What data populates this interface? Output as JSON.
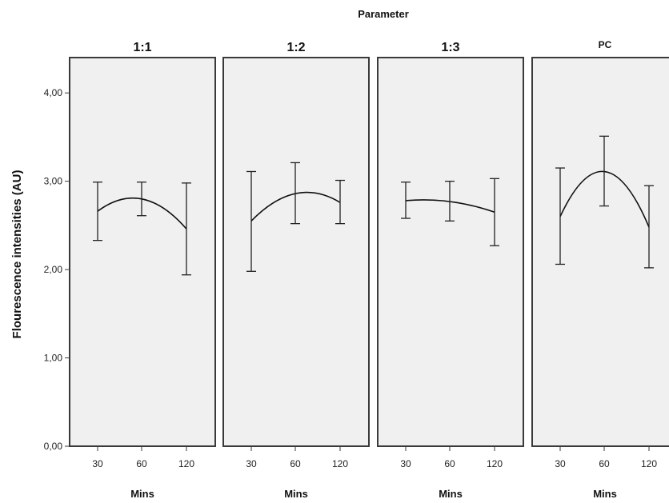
{
  "chart_data": {
    "type": "line",
    "facet_title": "Parameter",
    "ylabel": "Flourescence intensities (AU)",
    "xlabel": "Mins",
    "ylim": [
      0,
      4.4
    ],
    "yticks": [
      "0,00",
      "1,00",
      "2,00",
      "3,00",
      "4,00"
    ],
    "ytick_values": [
      0,
      1,
      2,
      3,
      4
    ],
    "x": [
      "30",
      "60",
      "120"
    ],
    "panels": [
      {
        "title": "1:1",
        "values": [
          2.66,
          2.8,
          2.46
        ],
        "lower": [
          2.33,
          2.61,
          1.94
        ],
        "upper": [
          2.99,
          2.99,
          2.98
        ]
      },
      {
        "title": "1:2",
        "values": [
          2.55,
          2.86,
          2.76
        ],
        "lower": [
          1.98,
          2.52,
          2.52
        ],
        "upper": [
          3.11,
          3.21,
          3.01
        ]
      },
      {
        "title": "1:3",
        "values": [
          2.78,
          2.77,
          2.65
        ],
        "lower": [
          2.58,
          2.55,
          2.27
        ],
        "upper": [
          2.99,
          3.0,
          3.03
        ]
      },
      {
        "title": "PC",
        "values": [
          2.6,
          3.11,
          2.48
        ],
        "lower": [
          2.06,
          2.72,
          2.02
        ],
        "upper": [
          3.15,
          3.51,
          2.95
        ]
      }
    ]
  }
}
